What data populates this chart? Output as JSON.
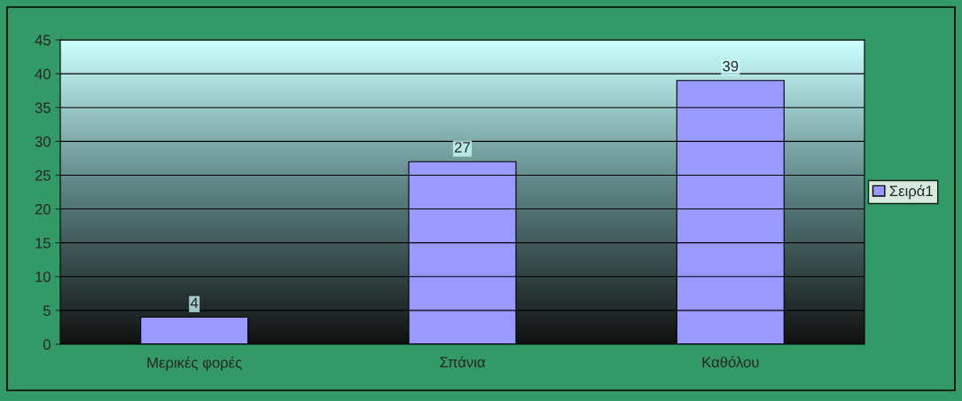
{
  "chart_data": {
    "type": "bar",
    "categories": [
      "Μερικές φορές",
      "Σπάνια",
      "Καθόλου"
    ],
    "series": [
      {
        "name": "Σειρά1",
        "color": "#9999ff",
        "values": [
          4,
          27,
          39
        ]
      }
    ],
    "ylim": [
      0,
      45
    ],
    "yticks": [
      0,
      5,
      10,
      15,
      20,
      25,
      30,
      35,
      40,
      45
    ],
    "grid": "y",
    "legend": "right",
    "data_labels": true
  }
}
